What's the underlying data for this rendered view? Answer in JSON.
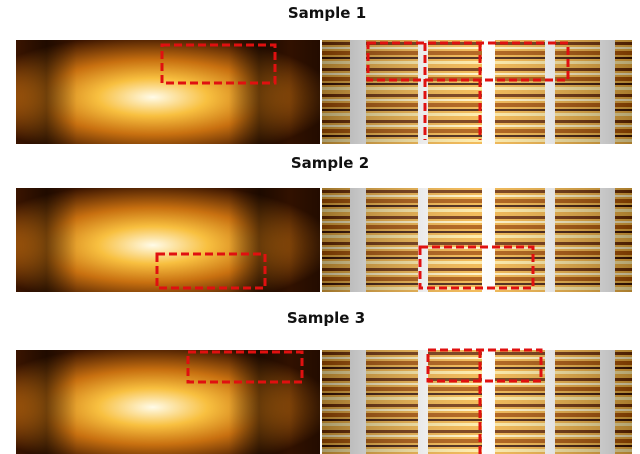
{
  "panels": [
    {
      "title": "Sample 1"
    },
    {
      "title": "Sample 2"
    },
    {
      "title": "Sample 3"
    }
  ]
}
